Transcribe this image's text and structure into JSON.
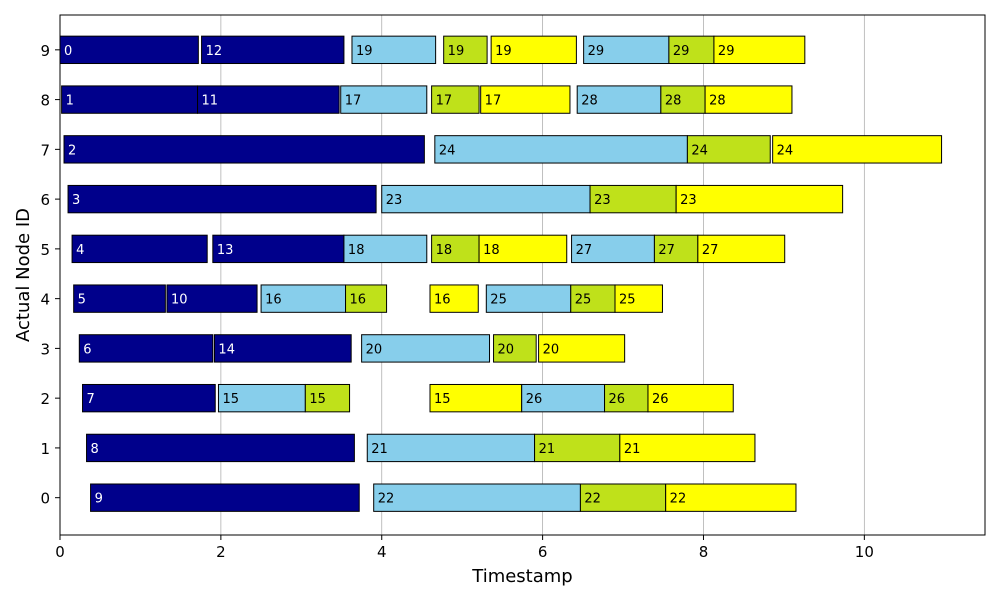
{
  "chart_data": {
    "type": "bar",
    "orientation": "horizontal-gantt",
    "xlabel": "Timestamp",
    "ylabel": "Actual Node ID",
    "xlim": [
      0,
      11.5
    ],
    "ylim": [
      -0.75,
      9.7
    ],
    "x_ticks": [
      "0",
      "2",
      "4",
      "6",
      "8",
      "10"
    ],
    "y_ticks": [
      "0",
      "1",
      "2",
      "3",
      "4",
      "5",
      "6",
      "7",
      "8",
      "9"
    ],
    "highlighted_y_ticks": [
      "0",
      "1",
      "6",
      "7"
    ],
    "highlight_color": "#ff0000",
    "grid": "vertical",
    "colors": {
      "dark": "#00008b",
      "light": "#87ceeb",
      "green": "#bfe11a",
      "yellow": "#ffff00"
    },
    "tasks": [
      {
        "node": 9,
        "start": 0.0,
        "end": 1.72,
        "label": "0",
        "color": "dark"
      },
      {
        "node": 9,
        "start": 1.76,
        "end": 3.53,
        "label": "12",
        "color": "dark"
      },
      {
        "node": 9,
        "start": 3.63,
        "end": 4.67,
        "label": "19",
        "color": "light"
      },
      {
        "node": 9,
        "start": 4.77,
        "end": 5.31,
        "label": "19",
        "color": "green"
      },
      {
        "node": 9,
        "start": 5.36,
        "end": 6.42,
        "label": "19",
        "color": "yellow"
      },
      {
        "node": 9,
        "start": 6.51,
        "end": 7.57,
        "label": "29",
        "color": "light"
      },
      {
        "node": 9,
        "start": 7.57,
        "end": 8.13,
        "label": "29",
        "color": "green"
      },
      {
        "node": 9,
        "start": 8.13,
        "end": 9.26,
        "label": "29",
        "color": "yellow"
      },
      {
        "node": 8,
        "start": 0.02,
        "end": 1.71,
        "label": "1",
        "color": "dark"
      },
      {
        "node": 8,
        "start": 1.71,
        "end": 3.47,
        "label": "11",
        "color": "dark"
      },
      {
        "node": 8,
        "start": 3.49,
        "end": 4.56,
        "label": "17",
        "color": "light"
      },
      {
        "node": 8,
        "start": 4.62,
        "end": 5.21,
        "label": "17",
        "color": "green"
      },
      {
        "node": 8,
        "start": 5.23,
        "end": 6.34,
        "label": "17",
        "color": "yellow"
      },
      {
        "node": 8,
        "start": 6.43,
        "end": 7.47,
        "label": "28",
        "color": "light"
      },
      {
        "node": 8,
        "start": 7.47,
        "end": 8.02,
        "label": "28",
        "color": "green"
      },
      {
        "node": 8,
        "start": 8.02,
        "end": 9.1,
        "label": "28",
        "color": "yellow"
      },
      {
        "node": 7,
        "start": 0.05,
        "end": 4.53,
        "label": "2",
        "color": "dark"
      },
      {
        "node": 7,
        "start": 4.66,
        "end": 7.8,
        "label": "24",
        "color": "light"
      },
      {
        "node": 7,
        "start": 7.8,
        "end": 8.83,
        "label": "24",
        "color": "green"
      },
      {
        "node": 7,
        "start": 8.86,
        "end": 10.96,
        "label": "24",
        "color": "yellow"
      },
      {
        "node": 6,
        "start": 0.1,
        "end": 3.93,
        "label": "3",
        "color": "dark"
      },
      {
        "node": 6,
        "start": 4.0,
        "end": 6.59,
        "label": "23",
        "color": "light"
      },
      {
        "node": 6,
        "start": 6.59,
        "end": 7.66,
        "label": "23",
        "color": "green"
      },
      {
        "node": 6,
        "start": 7.66,
        "end": 9.73,
        "label": "23",
        "color": "yellow"
      },
      {
        "node": 5,
        "start": 0.15,
        "end": 1.83,
        "label": "4",
        "color": "dark"
      },
      {
        "node": 5,
        "start": 1.9,
        "end": 3.53,
        "label": "13",
        "color": "dark"
      },
      {
        "node": 5,
        "start": 3.53,
        "end": 4.56,
        "label": "18",
        "color": "light"
      },
      {
        "node": 5,
        "start": 4.62,
        "end": 5.21,
        "label": "18",
        "color": "green"
      },
      {
        "node": 5,
        "start": 5.21,
        "end": 6.3,
        "label": "18",
        "color": "yellow"
      },
      {
        "node": 5,
        "start": 6.36,
        "end": 7.39,
        "label": "27",
        "color": "light"
      },
      {
        "node": 5,
        "start": 7.39,
        "end": 7.93,
        "label": "27",
        "color": "green"
      },
      {
        "node": 5,
        "start": 7.93,
        "end": 9.01,
        "label": "27",
        "color": "yellow"
      },
      {
        "node": 4,
        "start": 0.17,
        "end": 1.31,
        "label": "5",
        "color": "dark"
      },
      {
        "node": 4,
        "start": 1.33,
        "end": 2.45,
        "label": "10",
        "color": "dark"
      },
      {
        "node": 4,
        "start": 2.5,
        "end": 3.55,
        "label": "16",
        "color": "light"
      },
      {
        "node": 4,
        "start": 3.55,
        "end": 4.06,
        "label": "16",
        "color": "green"
      },
      {
        "node": 4,
        "start": 4.6,
        "end": 5.2,
        "label": "16",
        "color": "yellow"
      },
      {
        "node": 4,
        "start": 5.3,
        "end": 6.35,
        "label": "25",
        "color": "light"
      },
      {
        "node": 4,
        "start": 6.35,
        "end": 6.9,
        "label": "25",
        "color": "green"
      },
      {
        "node": 4,
        "start": 6.9,
        "end": 7.49,
        "label": "25",
        "color": "yellow"
      },
      {
        "node": 3,
        "start": 0.24,
        "end": 1.9,
        "label": "6",
        "color": "dark"
      },
      {
        "node": 3,
        "start": 1.92,
        "end": 3.62,
        "label": "14",
        "color": "dark"
      },
      {
        "node": 3,
        "start": 3.75,
        "end": 5.34,
        "label": "20",
        "color": "light"
      },
      {
        "node": 3,
        "start": 5.39,
        "end": 5.92,
        "label": "20",
        "color": "green"
      },
      {
        "node": 3,
        "start": 5.95,
        "end": 7.02,
        "label": "20",
        "color": "yellow"
      },
      {
        "node": 2,
        "start": 0.28,
        "end": 1.93,
        "label": "7",
        "color": "dark"
      },
      {
        "node": 2,
        "start": 1.97,
        "end": 3.05,
        "label": "15",
        "color": "light"
      },
      {
        "node": 2,
        "start": 3.05,
        "end": 3.6,
        "label": "15",
        "color": "green"
      },
      {
        "node": 2,
        "start": 4.6,
        "end": 5.74,
        "label": "15",
        "color": "yellow"
      },
      {
        "node": 2,
        "start": 5.74,
        "end": 6.77,
        "label": "26",
        "color": "light"
      },
      {
        "node": 2,
        "start": 6.77,
        "end": 7.31,
        "label": "26",
        "color": "green"
      },
      {
        "node": 2,
        "start": 7.31,
        "end": 8.37,
        "label": "26",
        "color": "yellow"
      },
      {
        "node": 1,
        "start": 0.33,
        "end": 3.66,
        "label": "8",
        "color": "dark"
      },
      {
        "node": 1,
        "start": 3.82,
        "end": 5.9,
        "label": "21",
        "color": "light"
      },
      {
        "node": 1,
        "start": 5.9,
        "end": 6.96,
        "label": "21",
        "color": "green"
      },
      {
        "node": 1,
        "start": 6.96,
        "end": 8.64,
        "label": "21",
        "color": "yellow"
      },
      {
        "node": 0,
        "start": 0.38,
        "end": 3.72,
        "label": "9",
        "color": "dark"
      },
      {
        "node": 0,
        "start": 3.9,
        "end": 6.47,
        "label": "22",
        "color": "light"
      },
      {
        "node": 0,
        "start": 6.47,
        "end": 7.53,
        "label": "22",
        "color": "green"
      },
      {
        "node": 0,
        "start": 7.53,
        "end": 9.15,
        "label": "22",
        "color": "yellow"
      }
    ]
  }
}
